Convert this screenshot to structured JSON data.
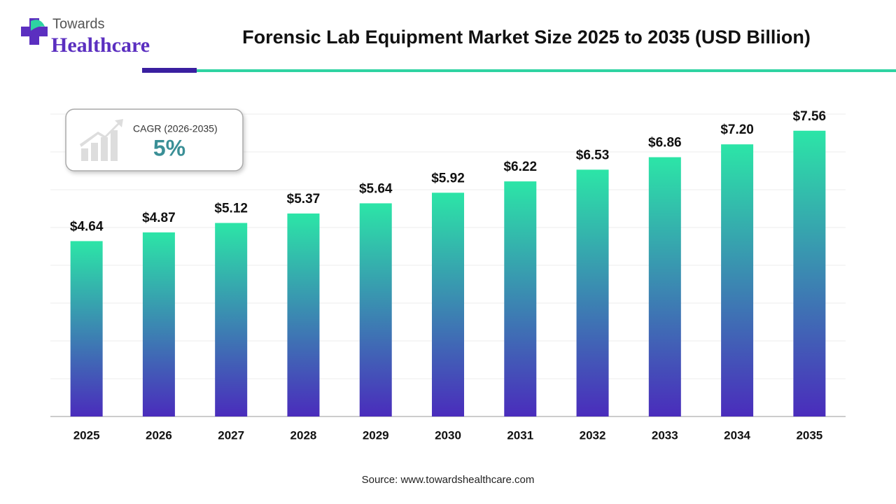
{
  "logo": {
    "line1": "Towards",
    "line2": "Healthcare"
  },
  "chart_data": {
    "type": "bar",
    "title": "Forensic Lab Equipment Market Size 2025 to 2035 (USD Billion)",
    "categories": [
      "2025",
      "2026",
      "2027",
      "2028",
      "2029",
      "2030",
      "2031",
      "2032",
      "2033",
      "2034",
      "2035"
    ],
    "values": [
      4.64,
      4.87,
      5.12,
      5.37,
      5.64,
      5.92,
      6.22,
      6.53,
      6.86,
      7.2,
      7.56
    ],
    "value_labels": [
      "$4.64",
      "$4.87",
      "$5.12",
      "$5.37",
      "$5.64",
      "$5.92",
      "$6.22",
      "$6.53",
      "$6.86",
      "$7.20",
      "$7.56"
    ],
    "gradient": {
      "top": "#2ce5a7",
      "bottom": "#4a2cbc"
    },
    "ylim": [
      0,
      8
    ],
    "yticks": [
      0,
      1,
      2,
      3,
      4,
      5,
      6,
      7,
      8
    ],
    "grid": true,
    "cagr": {
      "label": "CAGR (2026-2035)",
      "value": "5%"
    },
    "source": "Source: www.towardshealthcare.com"
  }
}
